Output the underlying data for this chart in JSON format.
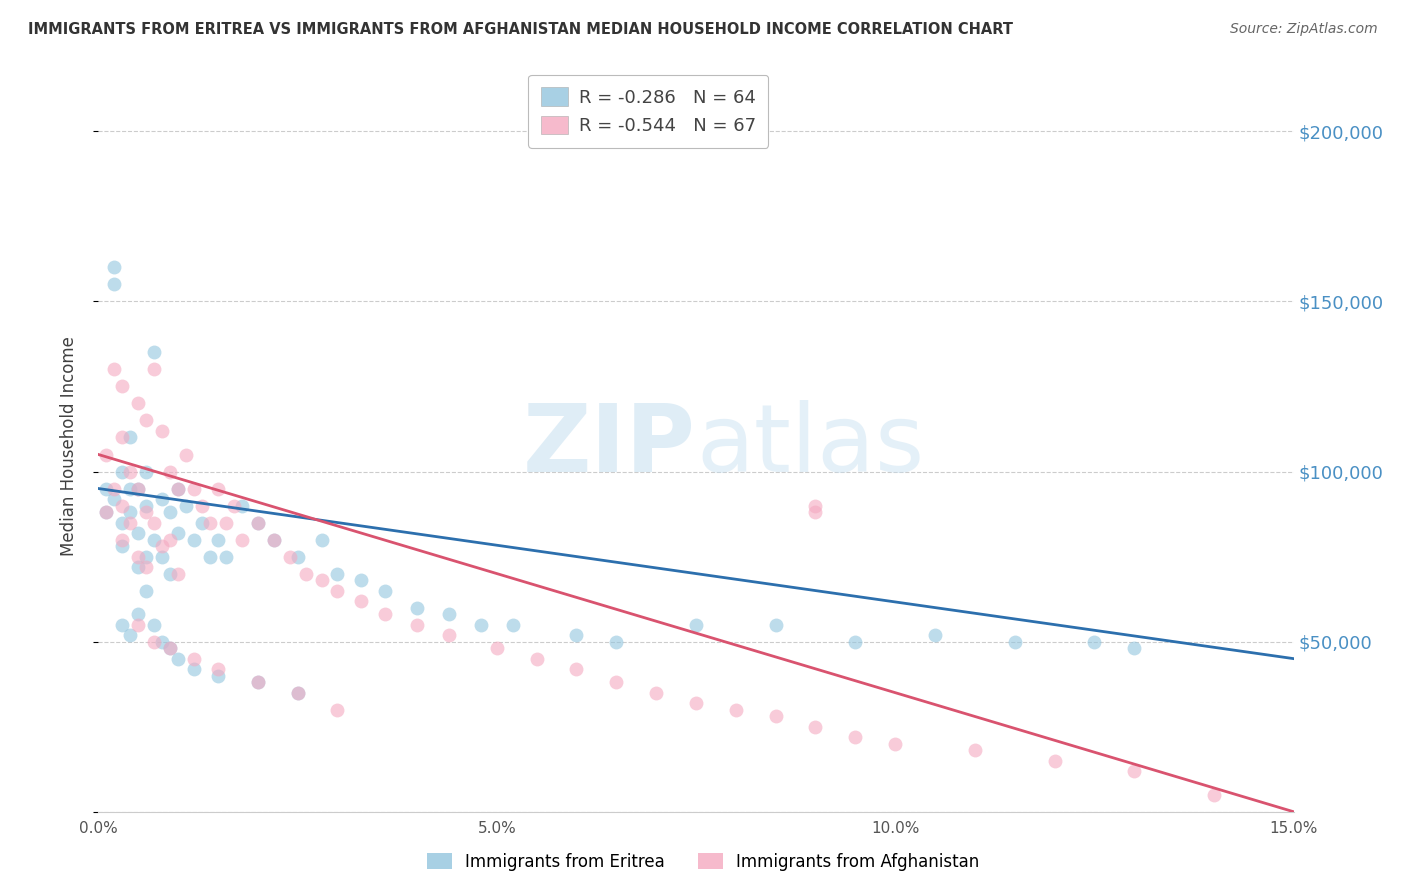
{
  "title": "IMMIGRANTS FROM ERITREA VS IMMIGRANTS FROM AFGHANISTAN MEDIAN HOUSEHOLD INCOME CORRELATION CHART",
  "source": "Source: ZipAtlas.com",
  "ylabel": "Median Household Income",
  "xlabel_ticks": [
    "0.0%",
    "",
    "5.0%",
    "",
    "10.0%",
    "",
    "15.0%"
  ],
  "xlabel_vals": [
    0.0,
    0.025,
    0.05,
    0.075,
    0.1,
    0.125,
    0.15
  ],
  "ytick_vals": [
    0,
    50000,
    100000,
    150000,
    200000
  ],
  "ytick_labels": [
    "",
    "$50,000",
    "$100,000",
    "$150,000",
    "$200,000"
  ],
  "xlim": [
    0.0,
    0.15
  ],
  "ylim": [
    0,
    215000
  ],
  "watermark_zip": "ZIP",
  "watermark_atlas": "atlas",
  "legend1_r": "-0.286",
  "legend1_n": "64",
  "legend2_r": "-0.544",
  "legend2_n": "67",
  "color_eritrea": "#92c5de",
  "color_afghanistan": "#f4a9c0",
  "color_line_eritrea": "#2c6fad",
  "color_line_afghanistan": "#d9536f",
  "color_ytick_label": "#4A90C4",
  "color_title": "#333333",
  "color_source": "#666666",
  "scatter_alpha": 0.6,
  "scatter_size": 100,
  "eritrea_x": [
    0.001,
    0.001,
    0.002,
    0.002,
    0.002,
    0.003,
    0.003,
    0.003,
    0.004,
    0.004,
    0.004,
    0.005,
    0.005,
    0.005,
    0.006,
    0.006,
    0.006,
    0.007,
    0.007,
    0.008,
    0.008,
    0.009,
    0.009,
    0.01,
    0.01,
    0.011,
    0.012,
    0.013,
    0.014,
    0.015,
    0.016,
    0.018,
    0.02,
    0.022,
    0.025,
    0.028,
    0.03,
    0.033,
    0.036,
    0.04,
    0.044,
    0.048,
    0.052,
    0.06,
    0.065,
    0.075,
    0.085,
    0.095,
    0.105,
    0.115,
    0.125,
    0.13,
    0.003,
    0.004,
    0.005,
    0.006,
    0.007,
    0.008,
    0.009,
    0.01,
    0.012,
    0.015,
    0.02,
    0.025
  ],
  "eritrea_y": [
    95000,
    88000,
    160000,
    155000,
    92000,
    100000,
    85000,
    78000,
    95000,
    88000,
    110000,
    82000,
    95000,
    72000,
    100000,
    90000,
    75000,
    135000,
    80000,
    92000,
    75000,
    88000,
    70000,
    95000,
    82000,
    90000,
    80000,
    85000,
    75000,
    80000,
    75000,
    90000,
    85000,
    80000,
    75000,
    80000,
    70000,
    68000,
    65000,
    60000,
    58000,
    55000,
    55000,
    52000,
    50000,
    55000,
    55000,
    50000,
    52000,
    50000,
    50000,
    48000,
    55000,
    52000,
    58000,
    65000,
    55000,
    50000,
    48000,
    45000,
    42000,
    40000,
    38000,
    35000
  ],
  "afghanistan_x": [
    0.001,
    0.001,
    0.002,
    0.002,
    0.003,
    0.003,
    0.003,
    0.004,
    0.004,
    0.005,
    0.005,
    0.005,
    0.006,
    0.006,
    0.006,
    0.007,
    0.007,
    0.008,
    0.008,
    0.009,
    0.009,
    0.01,
    0.01,
    0.011,
    0.012,
    0.013,
    0.014,
    0.015,
    0.016,
    0.017,
    0.018,
    0.02,
    0.022,
    0.024,
    0.026,
    0.028,
    0.03,
    0.033,
    0.036,
    0.04,
    0.044,
    0.05,
    0.055,
    0.06,
    0.065,
    0.07,
    0.075,
    0.08,
    0.085,
    0.09,
    0.095,
    0.1,
    0.11,
    0.12,
    0.13,
    0.14,
    0.003,
    0.005,
    0.007,
    0.009,
    0.012,
    0.015,
    0.02,
    0.025,
    0.03,
    0.09,
    0.09
  ],
  "afghanistan_y": [
    105000,
    88000,
    130000,
    95000,
    110000,
    125000,
    80000,
    100000,
    85000,
    120000,
    95000,
    75000,
    115000,
    88000,
    72000,
    130000,
    85000,
    112000,
    78000,
    100000,
    80000,
    95000,
    70000,
    105000,
    95000,
    90000,
    85000,
    95000,
    85000,
    90000,
    80000,
    85000,
    80000,
    75000,
    70000,
    68000,
    65000,
    62000,
    58000,
    55000,
    52000,
    48000,
    45000,
    42000,
    38000,
    35000,
    32000,
    30000,
    28000,
    25000,
    22000,
    20000,
    18000,
    15000,
    12000,
    5000,
    90000,
    55000,
    50000,
    48000,
    45000,
    42000,
    38000,
    35000,
    30000,
    90000,
    88000
  ]
}
